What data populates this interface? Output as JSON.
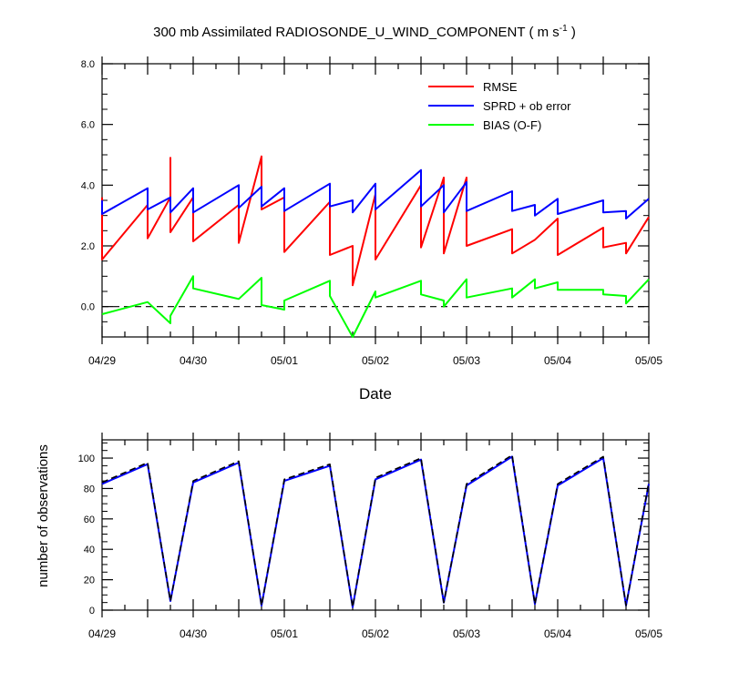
{
  "chart_data": [
    {
      "type": "line",
      "title_main": "300 mb Assimilated RADIOSONDE_U_WIND_COMPONENT ( m s",
      "title_sup": "-1",
      "title_end": " )",
      "xlabel": "Date",
      "ylabel": "",
      "xlim": [
        0,
        6
      ],
      "ylim": [
        -1,
        8
      ],
      "x_tick_labels": [
        "04/29",
        "04/30",
        "05/01",
        "05/02",
        "05/03",
        "05/04",
        "05/05"
      ],
      "x_tick_values": [
        0,
        1,
        2,
        3,
        4,
        5,
        6
      ],
      "y_tick_labels": [
        "0.0",
        "2.0",
        "4.0",
        "6.0",
        "8.0"
      ],
      "y_tick_values": [
        0,
        2,
        4,
        6,
        8
      ],
      "legend_position": "top-right",
      "reference_line": {
        "y": 0,
        "style": "dashed",
        "color": "#000000"
      },
      "series": [
        {
          "name": "RMSE",
          "color": "#ff0000",
          "points": [
            [
              0,
              3.6
            ],
            [
              0,
              1.55
            ],
            [
              0.5,
              3.35
            ],
            [
              0.5,
              3.35
            ],
            [
              0.5,
              2.25
            ],
            [
              0.75,
              3.6
            ],
            [
              0.75,
              4.9
            ],
            [
              0.75,
              2.45
            ],
            [
              1,
              3.6
            ],
            [
              1,
              2.15
            ],
            [
              1.5,
              3.35
            ],
            [
              1.5,
              2.1
            ],
            [
              1.75,
              4.95
            ],
            [
              1.75,
              3.2
            ],
            [
              2,
              3.6
            ],
            [
              2,
              1.8
            ],
            [
              2.5,
              3.45
            ],
            [
              2.5,
              1.7
            ],
            [
              2.75,
              2.0
            ],
            [
              2.75,
              0.7
            ],
            [
              3,
              3.7
            ],
            [
              3,
              1.55
            ],
            [
              3.5,
              4.0
            ],
            [
              3.5,
              1.95
            ],
            [
              3.75,
              4.25
            ],
            [
              3.75,
              1.75
            ],
            [
              4,
              4.25
            ],
            [
              4,
              2.0
            ],
            [
              4.5,
              2.55
            ],
            [
              4.5,
              1.75
            ],
            [
              4.75,
              2.2
            ],
            [
              5,
              2.9
            ],
            [
              5,
              1.7
            ],
            [
              5.5,
              2.6
            ],
            [
              5.5,
              1.95
            ],
            [
              5.75,
              2.1
            ],
            [
              5.75,
              1.75
            ],
            [
              6,
              2.95
            ]
          ]
        },
        {
          "name": "SPRD + ob error",
          "color": "#0000ff",
          "points": [
            [
              0,
              3.5
            ],
            [
              0,
              3.05
            ],
            [
              0.5,
              3.9
            ],
            [
              0.5,
              3.2
            ],
            [
              0.75,
              3.6
            ],
            [
              0.75,
              3.1
            ],
            [
              1,
              3.9
            ],
            [
              1,
              3.1
            ],
            [
              1.5,
              4.0
            ],
            [
              1.5,
              3.25
            ],
            [
              1.75,
              3.95
            ],
            [
              1.75,
              3.3
            ],
            [
              2,
              3.9
            ],
            [
              2,
              3.15
            ],
            [
              2.5,
              4.05
            ],
            [
              2.5,
              3.3
            ],
            [
              2.75,
              3.5
            ],
            [
              2.75,
              3.1
            ],
            [
              3,
              4.05
            ],
            [
              3,
              3.2
            ],
            [
              3.5,
              4.5
            ],
            [
              3.5,
              3.3
            ],
            [
              3.75,
              4.0
            ],
            [
              3.75,
              3.1
            ],
            [
              4,
              4.1
            ],
            [
              4,
              3.15
            ],
            [
              4.5,
              3.8
            ],
            [
              4.5,
              3.15
            ],
            [
              4.75,
              3.35
            ],
            [
              4.75,
              3.0
            ],
            [
              5,
              3.55
            ],
            [
              5,
              3.05
            ],
            [
              5.5,
              3.5
            ],
            [
              5.5,
              3.1
            ],
            [
              5.75,
              3.15
            ],
            [
              5.75,
              2.9
            ],
            [
              6,
              3.55
            ]
          ]
        },
        {
          "name": "BIAS (O-F)",
          "color": "#00ff00",
          "points": [
            [
              0,
              -0.25
            ],
            [
              0.5,
              0.15
            ],
            [
              0.75,
              -0.55
            ],
            [
              0.75,
              -0.3
            ],
            [
              1,
              1.0
            ],
            [
              1,
              0.6
            ],
            [
              1.5,
              0.25
            ],
            [
              1.75,
              0.95
            ],
            [
              1.75,
              0.05
            ],
            [
              2,
              -0.1
            ],
            [
              2,
              0.2
            ],
            [
              2.5,
              0.85
            ],
            [
              2.5,
              0.35
            ],
            [
              2.75,
              -1.0
            ],
            [
              3,
              0.5
            ],
            [
              3,
              0.3
            ],
            [
              3.5,
              0.85
            ],
            [
              3.5,
              0.4
            ],
            [
              3.75,
              0.2
            ],
            [
              3.75,
              0.0
            ],
            [
              4,
              0.9
            ],
            [
              4,
              0.3
            ],
            [
              4.5,
              0.6
            ],
            [
              4.5,
              0.3
            ],
            [
              4.75,
              0.9
            ],
            [
              4.75,
              0.6
            ],
            [
              5,
              0.8
            ],
            [
              5,
              0.55
            ],
            [
              5.5,
              0.55
            ],
            [
              5.5,
              0.4
            ],
            [
              5.75,
              0.35
            ],
            [
              5.75,
              0.1
            ],
            [
              6,
              0.9
            ]
          ]
        }
      ]
    },
    {
      "type": "line",
      "title": "",
      "xlabel": "",
      "ylabel": "number of observations",
      "xlim": [
        0,
        6
      ],
      "ylim": [
        0,
        112
      ],
      "x_tick_labels": [
        "04/29",
        "04/30",
        "05/01",
        "05/02",
        "05/03",
        "05/04",
        "05/05"
      ],
      "x_tick_values": [
        0,
        1,
        2,
        3,
        4,
        5,
        6
      ],
      "y_tick_labels": [
        "0",
        "20",
        "40",
        "60",
        "80",
        "100"
      ],
      "y_tick_values": [
        0,
        20,
        40,
        60,
        80,
        100
      ],
      "series": [
        {
          "name": "observations (solid)",
          "color": "#0000ff",
          "style": "solid",
          "points": [
            [
              0,
              83
            ],
            [
              0.5,
              96
            ],
            [
              0.75,
              6
            ],
            [
              1,
              84
            ],
            [
              1.5,
              97
            ],
            [
              1.75,
              3
            ],
            [
              2,
              85
            ],
            [
              2.5,
              95
            ],
            [
              2.75,
              2
            ],
            [
              3,
              86
            ],
            [
              3.5,
              99
            ],
            [
              3.75,
              5
            ],
            [
              4,
              82
            ],
            [
              4.5,
              101
            ],
            [
              4.75,
              4
            ],
            [
              5,
              82
            ],
            [
              5.5,
              100
            ],
            [
              5.75,
              3
            ],
            [
              6,
              83
            ]
          ]
        },
        {
          "name": "observations (dashed)",
          "color": "#000000",
          "style": "dashed",
          "points": [
            [
              0,
              84
            ],
            [
              0.5,
              97
            ],
            [
              0.75,
              6
            ],
            [
              1,
              85
            ],
            [
              1.5,
              98
            ],
            [
              1.75,
              3
            ],
            [
              2,
              86
            ],
            [
              2.5,
              96
            ],
            [
              2.75,
              2
            ],
            [
              3,
              87
            ],
            [
              3.5,
              100
            ],
            [
              3.75,
              5
            ],
            [
              4,
              83
            ],
            [
              4.5,
              102
            ],
            [
              4.75,
              4
            ],
            [
              5,
              83
            ],
            [
              5.5,
              101
            ],
            [
              5.75,
              3
            ],
            [
              6,
              84
            ]
          ]
        }
      ]
    }
  ]
}
